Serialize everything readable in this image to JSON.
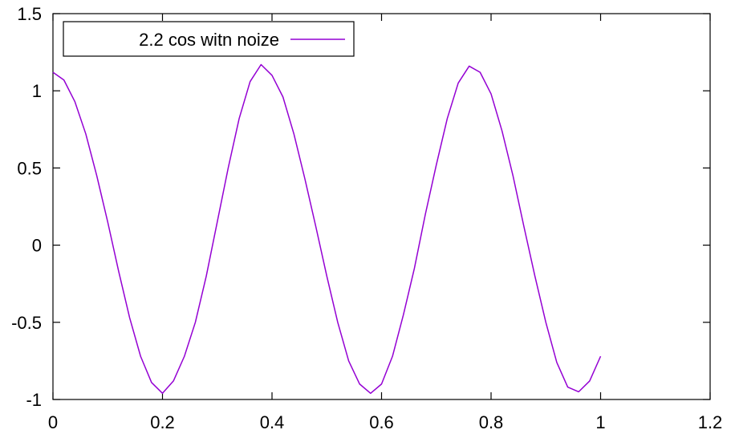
{
  "chart_data": {
    "type": "line",
    "title": "",
    "xlabel": "",
    "ylabel": "",
    "xlim": [
      0,
      1.2
    ],
    "ylim": [
      -1,
      1.5
    ],
    "x_ticks": [
      0,
      0.2,
      0.4,
      0.6,
      0.8,
      1,
      1.2
    ],
    "x_tick_labels": [
      "0",
      "0.2",
      "0.4",
      "0.6",
      "0.8",
      "1",
      "1.2"
    ],
    "y_ticks": [
      -1,
      -0.5,
      0,
      0.5,
      1,
      1.5
    ],
    "y_tick_labels": [
      "-1",
      "-0.5",
      "0",
      "0.5",
      "1",
      "1.5"
    ],
    "grid": false,
    "legend_position": "top-left",
    "series": [
      {
        "name": "2.2 cos witn noize",
        "color": "#9400d3",
        "x": [
          0,
          0.02,
          0.04,
          0.06,
          0.08,
          0.1,
          0.12,
          0.14,
          0.16,
          0.18,
          0.2,
          0.22,
          0.24,
          0.26,
          0.28,
          0.3,
          0.32,
          0.34,
          0.36,
          0.38,
          0.4,
          0.42,
          0.44,
          0.46,
          0.48,
          0.5,
          0.52,
          0.54,
          0.56,
          0.58,
          0.6,
          0.62,
          0.64,
          0.66,
          0.68,
          0.7,
          0.72,
          0.74,
          0.76,
          0.78,
          0.8,
          0.82,
          0.84,
          0.86,
          0.88,
          0.9,
          0.92,
          0.94,
          0.96,
          0.98,
          1
        ],
        "y": [
          1.12,
          1.07,
          0.93,
          0.72,
          0.45,
          0.15,
          -0.17,
          -0.47,
          -0.72,
          -0.89,
          -0.96,
          -0.88,
          -0.72,
          -0.5,
          -0.2,
          0.15,
          0.5,
          0.82,
          1.06,
          1.17,
          1.1,
          0.96,
          0.72,
          0.43,
          0.12,
          -0.2,
          -0.5,
          -0.75,
          -0.9,
          -0.96,
          -0.9,
          -0.72,
          -0.45,
          -0.15,
          0.2,
          0.52,
          0.82,
          1.05,
          1.16,
          1.12,
          0.98,
          0.74,
          0.45,
          0.12,
          -0.2,
          -0.5,
          -0.76,
          -0.92,
          -0.95,
          -0.88,
          -0.72
        ]
      }
    ]
  }
}
